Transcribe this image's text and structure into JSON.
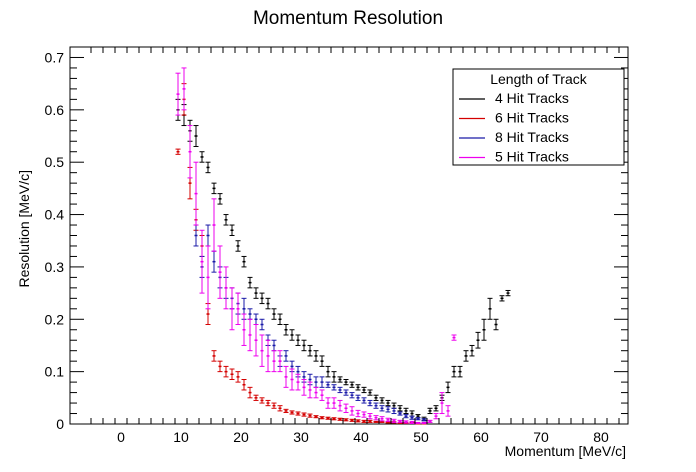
{
  "chart_data": {
    "type": "scatter",
    "title": "Momentum Resolution",
    "xlabel": "Momentum [MeV/c]",
    "ylabel": "Resolution [MeV/c]",
    "xlim": [
      -8.5,
      84.5
    ],
    "ylim": [
      0,
      0.72
    ],
    "xticks": [
      0,
      10,
      20,
      30,
      40,
      50,
      60,
      70,
      80
    ],
    "yticks": [
      0,
      0.1,
      0.2,
      0.3,
      0.4,
      0.5,
      0.6,
      0.7
    ],
    "yticklabels": [
      "0",
      "0.1",
      "0.2",
      "0.3",
      "0.4",
      "0.5",
      "0.6",
      "0.7"
    ],
    "grid": false,
    "legend": {
      "title": "Length of Track",
      "placement": "top-right",
      "entries": [
        {
          "label": "4 Hit Tracks",
          "color": "#000000"
        },
        {
          "label": "6 Hit Tracks",
          "color": "#d40000"
        },
        {
          "label": "8 Hit Tracks",
          "color": "#1a1aa8"
        },
        {
          "label": "5 Hit Tracks",
          "color": "#ee00ee"
        }
      ]
    },
    "series": [
      {
        "name": "4 Hit Tracks",
        "color": "#000000",
        "points": [
          [
            9.5,
            0.6,
            0.02
          ],
          [
            10.5,
            0.59,
            0.02
          ],
          [
            11.5,
            0.56,
            0.02
          ],
          [
            12.5,
            0.55,
            0.02
          ],
          [
            13.5,
            0.51,
            0.01
          ],
          [
            14.5,
            0.49,
            0.01
          ],
          [
            15.5,
            0.45,
            0.01
          ],
          [
            16.5,
            0.43,
            0.01
          ],
          [
            17.5,
            0.39,
            0.01
          ],
          [
            18.5,
            0.37,
            0.01
          ],
          [
            19.5,
            0.34,
            0.01
          ],
          [
            20.5,
            0.31,
            0.01
          ],
          [
            21.5,
            0.27,
            0.01
          ],
          [
            22.5,
            0.25,
            0.01
          ],
          [
            23.5,
            0.24,
            0.01
          ],
          [
            24.5,
            0.23,
            0.01
          ],
          [
            25.5,
            0.21,
            0.01
          ],
          [
            26.5,
            0.2,
            0.01
          ],
          [
            27.5,
            0.18,
            0.01
          ],
          [
            28.5,
            0.17,
            0.01
          ],
          [
            29.5,
            0.16,
            0.01
          ],
          [
            30.5,
            0.15,
            0.01
          ],
          [
            31.5,
            0.14,
            0.01
          ],
          [
            32.5,
            0.13,
            0.01
          ],
          [
            33.5,
            0.12,
            0.01
          ],
          [
            34.5,
            0.1,
            0.01
          ],
          [
            35.5,
            0.09,
            0.01
          ],
          [
            36.5,
            0.085,
            0.005
          ],
          [
            37.5,
            0.08,
            0.005
          ],
          [
            38.5,
            0.075,
            0.005
          ],
          [
            39.5,
            0.07,
            0.005
          ],
          [
            40.5,
            0.065,
            0.005
          ],
          [
            41.5,
            0.06,
            0.005
          ],
          [
            42.5,
            0.05,
            0.005
          ],
          [
            43.5,
            0.045,
            0.005
          ],
          [
            44.5,
            0.04,
            0.005
          ],
          [
            45.5,
            0.035,
            0.005
          ],
          [
            46.5,
            0.03,
            0.005
          ],
          [
            47.5,
            0.025,
            0.005
          ],
          [
            48.5,
            0.02,
            0.005
          ],
          [
            49.5,
            0.015,
            0.003
          ],
          [
            50.5,
            0.01,
            0.003
          ],
          [
            51.5,
            0.025,
            0.005
          ],
          [
            52.5,
            0.03,
            0.005
          ],
          [
            53.5,
            0.05,
            0.005
          ],
          [
            54.5,
            0.07,
            0.01
          ],
          [
            55.5,
            0.1,
            0.01
          ],
          [
            56.5,
            0.1,
            0.01
          ],
          [
            57.5,
            0.13,
            0.01
          ],
          [
            58.5,
            0.14,
            0.01
          ],
          [
            59.5,
            0.16,
            0.015
          ],
          [
            60.5,
            0.18,
            0.02
          ],
          [
            61.5,
            0.22,
            0.02
          ],
          [
            62.5,
            0.19,
            0.01
          ],
          [
            63.5,
            0.24,
            0.005
          ],
          [
            64.5,
            0.25,
            0.005
          ]
        ]
      },
      {
        "name": "6 Hit Tracks",
        "color": "#d40000",
        "points": [
          [
            9.5,
            0.52,
            0.005
          ],
          [
            10.5,
            0.62,
            0.03
          ],
          [
            11.5,
            0.46,
            0.03
          ],
          [
            12.5,
            0.39,
            0.02
          ],
          [
            13.5,
            0.34,
            0.02
          ],
          [
            14.5,
            0.21,
            0.02
          ],
          [
            15.5,
            0.13,
            0.01
          ],
          [
            16.5,
            0.11,
            0.01
          ],
          [
            17.5,
            0.1,
            0.01
          ],
          [
            18.5,
            0.095,
            0.01
          ],
          [
            19.5,
            0.09,
            0.01
          ],
          [
            20.5,
            0.075,
            0.01
          ],
          [
            21.5,
            0.06,
            0.01
          ],
          [
            22.5,
            0.05,
            0.005
          ],
          [
            23.5,
            0.045,
            0.005
          ],
          [
            24.5,
            0.04,
            0.005
          ],
          [
            25.5,
            0.035,
            0.005
          ],
          [
            26.5,
            0.03,
            0.005
          ],
          [
            27.5,
            0.025,
            0.003
          ],
          [
            28.5,
            0.022,
            0.003
          ],
          [
            29.5,
            0.02,
            0.003
          ],
          [
            30.5,
            0.018,
            0.003
          ],
          [
            31.5,
            0.016,
            0.003
          ],
          [
            32.5,
            0.014,
            0.002
          ],
          [
            33.5,
            0.012,
            0.002
          ],
          [
            34.5,
            0.011,
            0.002
          ],
          [
            35.5,
            0.01,
            0.002
          ],
          [
            36.5,
            0.009,
            0.002
          ],
          [
            37.5,
            0.008,
            0.002
          ],
          [
            38.5,
            0.007,
            0.002
          ],
          [
            39.5,
            0.006,
            0.002
          ],
          [
            40.5,
            0.005,
            0.002
          ],
          [
            41.5,
            0.005,
            0.002
          ],
          [
            42.5,
            0.004,
            0.001
          ],
          [
            43.5,
            0.004,
            0.001
          ],
          [
            44.5,
            0.003,
            0.001
          ],
          [
            45.5,
            0.003,
            0.001
          ],
          [
            46.5,
            0.002,
            0.001
          ],
          [
            47.5,
            0.002,
            0.001
          ],
          [
            48.5,
            0.002,
            0.001
          ],
          [
            49.5,
            0.001,
            0.001
          ],
          [
            50.5,
            0.001,
            0.001
          ]
        ]
      },
      {
        "name": "8 Hit Tracks",
        "color": "#1a1aa8",
        "points": [
          [
            12.5,
            0.36,
            0.02
          ],
          [
            13.5,
            0.3,
            0.02
          ],
          [
            14.5,
            0.36,
            0.02
          ],
          [
            15.5,
            0.31,
            0.02
          ],
          [
            16.5,
            0.28,
            0.02
          ],
          [
            17.5,
            0.26,
            0.02
          ],
          [
            18.5,
            0.24,
            0.02
          ],
          [
            19.5,
            0.23,
            0.02
          ],
          [
            20.5,
            0.22,
            0.02
          ],
          [
            21.5,
            0.21,
            0.01
          ],
          [
            22.5,
            0.2,
            0.01
          ],
          [
            23.5,
            0.19,
            0.01
          ],
          [
            24.5,
            0.16,
            0.01
          ],
          [
            25.5,
            0.15,
            0.01
          ],
          [
            26.5,
            0.12,
            0.01
          ],
          [
            27.5,
            0.13,
            0.01
          ],
          [
            28.5,
            0.11,
            0.01
          ],
          [
            29.5,
            0.1,
            0.01
          ],
          [
            30.5,
            0.09,
            0.01
          ],
          [
            31.5,
            0.085,
            0.01
          ],
          [
            32.5,
            0.08,
            0.01
          ],
          [
            33.5,
            0.08,
            0.01
          ],
          [
            34.5,
            0.075,
            0.005
          ],
          [
            35.5,
            0.07,
            0.005
          ],
          [
            36.5,
            0.065,
            0.005
          ],
          [
            37.5,
            0.06,
            0.005
          ],
          [
            38.5,
            0.055,
            0.005
          ],
          [
            39.5,
            0.05,
            0.005
          ],
          [
            40.5,
            0.045,
            0.005
          ],
          [
            41.5,
            0.04,
            0.005
          ],
          [
            42.5,
            0.035,
            0.005
          ],
          [
            43.5,
            0.03,
            0.005
          ],
          [
            44.5,
            0.028,
            0.005
          ],
          [
            45.5,
            0.025,
            0.005
          ],
          [
            46.5,
            0.02,
            0.003
          ],
          [
            47.5,
            0.015,
            0.003
          ],
          [
            48.5,
            0.012,
            0.003
          ],
          [
            49.5,
            0.01,
            0.002
          ],
          [
            50.5,
            0.008,
            0.002
          ]
        ]
      },
      {
        "name": "5 Hit Tracks",
        "color": "#ee00ee",
        "points": [
          [
            9.5,
            0.63,
            0.04
          ],
          [
            10.5,
            0.64,
            0.04
          ],
          [
            11.5,
            0.52,
            0.05
          ],
          [
            12.5,
            0.44,
            0.06
          ],
          [
            13.5,
            0.31,
            0.06
          ],
          [
            14.5,
            0.28,
            0.06
          ],
          [
            15.5,
            0.38,
            0.05
          ],
          [
            16.5,
            0.29,
            0.05
          ],
          [
            17.5,
            0.26,
            0.04
          ],
          [
            18.5,
            0.22,
            0.04
          ],
          [
            19.5,
            0.22,
            0.03
          ],
          [
            20.5,
            0.18,
            0.03
          ],
          [
            21.5,
            0.17,
            0.03
          ],
          [
            22.5,
            0.16,
            0.03
          ],
          [
            23.5,
            0.14,
            0.03
          ],
          [
            24.5,
            0.13,
            0.03
          ],
          [
            25.5,
            0.12,
            0.02
          ],
          [
            26.5,
            0.12,
            0.02
          ],
          [
            27.5,
            0.09,
            0.02
          ],
          [
            28.5,
            0.085,
            0.02
          ],
          [
            29.5,
            0.08,
            0.015
          ],
          [
            30.5,
            0.07,
            0.015
          ],
          [
            31.5,
            0.065,
            0.015
          ],
          [
            32.5,
            0.06,
            0.01
          ],
          [
            33.5,
            0.055,
            0.01
          ],
          [
            34.5,
            0.04,
            0.01
          ],
          [
            35.5,
            0.04,
            0.01
          ],
          [
            36.5,
            0.035,
            0.01
          ],
          [
            37.5,
            0.03,
            0.008
          ],
          [
            38.5,
            0.025,
            0.008
          ],
          [
            39.5,
            0.02,
            0.006
          ],
          [
            40.5,
            0.018,
            0.005
          ],
          [
            41.5,
            0.015,
            0.005
          ],
          [
            42.5,
            0.012,
            0.004
          ],
          [
            43.5,
            0.01,
            0.004
          ],
          [
            44.5,
            0.008,
            0.003
          ],
          [
            45.5,
            0.006,
            0.003
          ],
          [
            46.5,
            0.005,
            0.002
          ],
          [
            47.5,
            0.004,
            0.002
          ],
          [
            48.5,
            0.003,
            0.002
          ],
          [
            49.5,
            0.002,
            0.001
          ],
          [
            50.5,
            0.002,
            0.001
          ],
          [
            51.5,
            0.005,
            0.002
          ],
          [
            52.5,
            0.015,
            0.005
          ],
          [
            53.5,
            0.04,
            0.02
          ],
          [
            54.5,
            0.025,
            0.01
          ],
          [
            55.5,
            0.165,
            0.005
          ]
        ]
      }
    ]
  }
}
